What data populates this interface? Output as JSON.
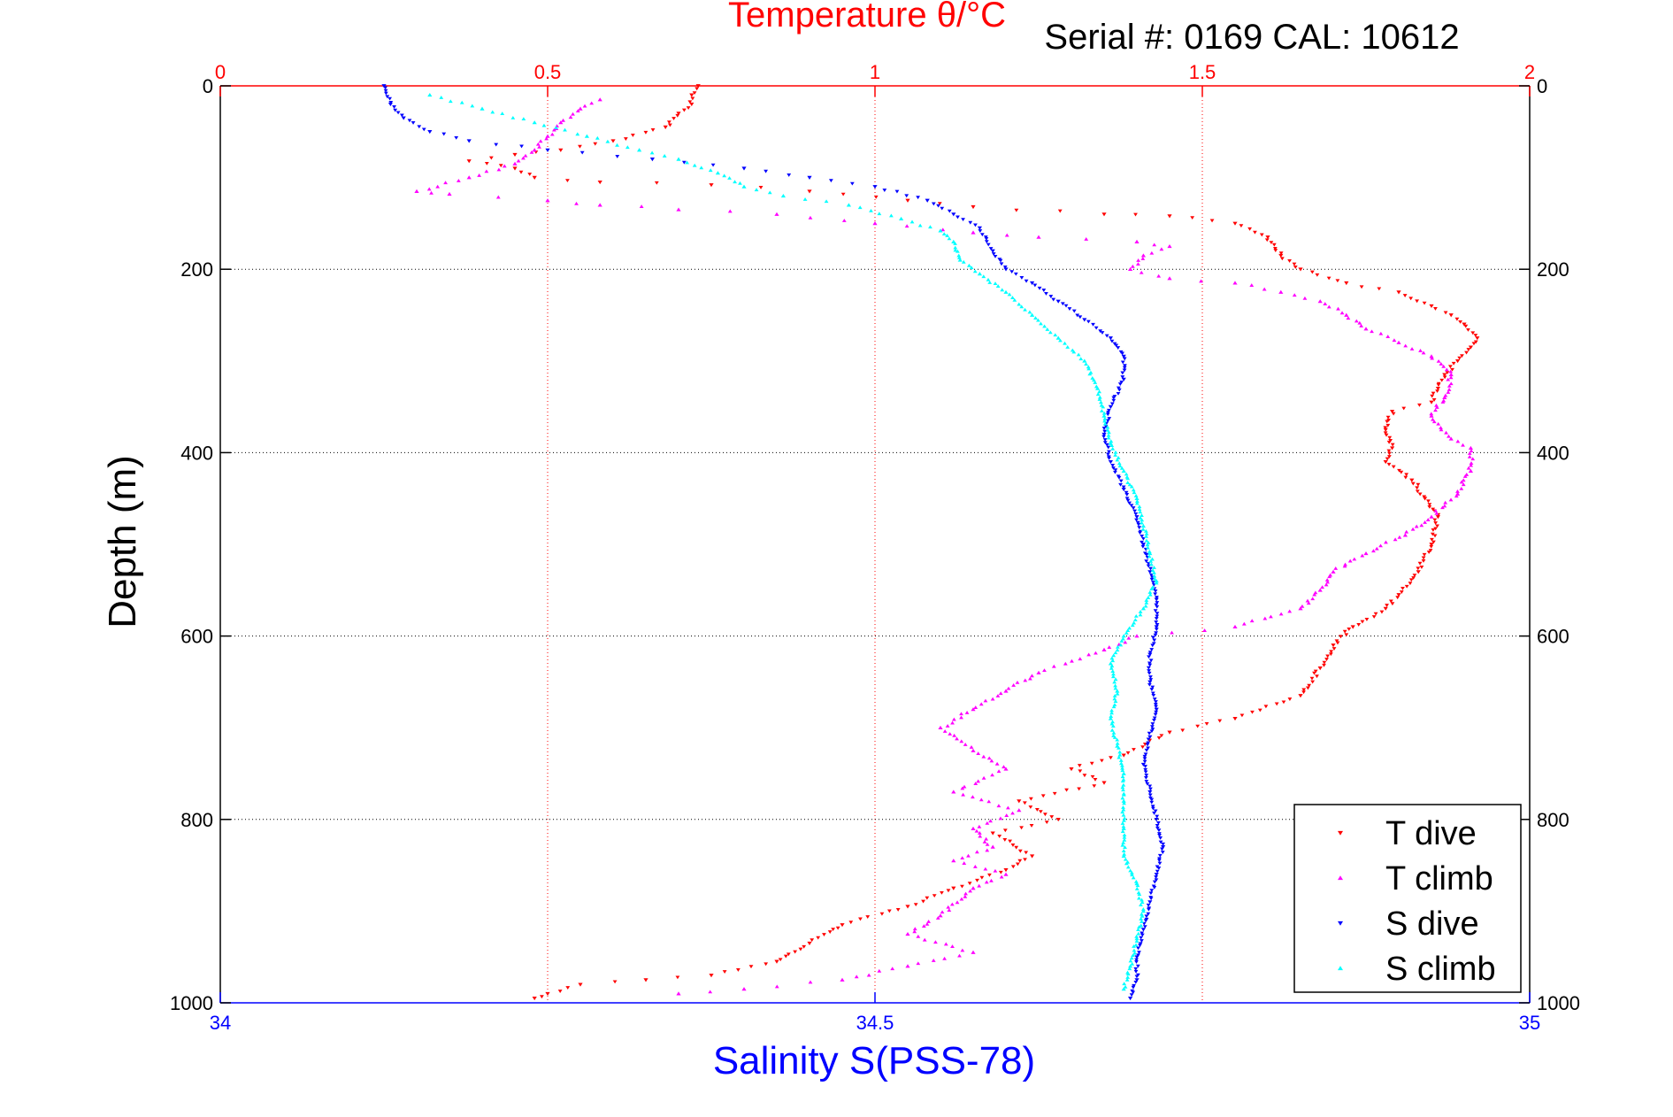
{
  "chart_data": {
    "type": "scatter",
    "title": "Temperature θ/°C",
    "subtitle": "Serial #: 0169 CAL: 10612",
    "xlabel_top": "Temperature θ/°C",
    "xlabel_bottom": "Salinity S(PSS-78)",
    "ylabel": "Depth (m)",
    "grid": true,
    "legend_position": "bottom-right",
    "ylim": [
      1000,
      0
    ],
    "y_ticks": [
      0,
      200,
      400,
      600,
      800,
      1000
    ],
    "y_tick_labels": [
      "0",
      "200",
      "400",
      "600",
      "800",
      "1000"
    ],
    "temperature_axis": {
      "range": [
        0,
        2
      ],
      "ticks": [
        0,
        0.5,
        1,
        1.5,
        2
      ],
      "tick_labels": [
        "0",
        "0.5",
        "1",
        "1.5",
        "2"
      ],
      "color": "#ff0000"
    },
    "salinity_axis": {
      "range": [
        34,
        35
      ],
      "ticks": [
        34,
        34.5,
        35
      ],
      "tick_labels": [
        "34",
        "34.5",
        "35"
      ],
      "color": "#0000ff"
    },
    "series": [
      {
        "name": "T dive",
        "axis": "temperature",
        "color": "#ff0000",
        "marker": "down-triangle",
        "points": [
          [
            0.73,
            0
          ],
          [
            0.72,
            10
          ],
          [
            0.72,
            20
          ],
          [
            0.7,
            30
          ],
          [
            0.68,
            45
          ],
          [
            0.6,
            60
          ],
          [
            0.52,
            70
          ],
          [
            0.45,
            75
          ],
          [
            0.38,
            82
          ],
          [
            0.45,
            90
          ],
          [
            0.48,
            100
          ],
          [
            0.58,
            105
          ],
          [
            0.75,
            108
          ],
          [
            0.9,
            115
          ],
          [
            1.05,
            125
          ],
          [
            1.15,
            132
          ],
          [
            1.35,
            140
          ],
          [
            1.45,
            142
          ],
          [
            1.55,
            150
          ],
          [
            1.6,
            165
          ],
          [
            1.62,
            185
          ],
          [
            1.65,
            200
          ],
          [
            1.72,
            215
          ],
          [
            1.8,
            225
          ],
          [
            1.85,
            240
          ],
          [
            1.88,
            250
          ],
          [
            1.9,
            260
          ],
          [
            1.92,
            275
          ],
          [
            1.91,
            285
          ],
          [
            1.89,
            300
          ],
          [
            1.87,
            315
          ],
          [
            1.86,
            330
          ],
          [
            1.85,
            345
          ],
          [
            1.79,
            355
          ],
          [
            1.78,
            375
          ],
          [
            1.79,
            395
          ],
          [
            1.78,
            410
          ],
          [
            1.82,
            430
          ],
          [
            1.84,
            450
          ],
          [
            1.86,
            470
          ],
          [
            1.85,
            500
          ],
          [
            1.83,
            530
          ],
          [
            1.8,
            555
          ],
          [
            1.78,
            570
          ],
          [
            1.73,
            590
          ],
          [
            1.7,
            610
          ],
          [
            1.68,
            635
          ],
          [
            1.65,
            665
          ],
          [
            1.55,
            690
          ],
          [
            1.45,
            705
          ],
          [
            1.38,
            730
          ],
          [
            1.3,
            745
          ],
          [
            1.35,
            760
          ],
          [
            1.22,
            780
          ],
          [
            1.28,
            800
          ],
          [
            1.18,
            815
          ],
          [
            1.24,
            840
          ],
          [
            1.2,
            855
          ],
          [
            1.12,
            875
          ],
          [
            1.05,
            895
          ],
          [
            0.95,
            915
          ],
          [
            0.9,
            935
          ],
          [
            0.85,
            955
          ],
          [
            0.75,
            970
          ],
          [
            0.65,
            975
          ],
          [
            0.55,
            980
          ],
          [
            0.5,
            990
          ],
          [
            0.48,
            995
          ]
        ]
      },
      {
        "name": "T climb",
        "axis": "temperature",
        "color": "#ff00ff",
        "marker": "up-triangle",
        "points": [
          [
            0.58,
            15
          ],
          [
            0.55,
            25
          ],
          [
            0.52,
            40
          ],
          [
            0.5,
            55
          ],
          [
            0.48,
            70
          ],
          [
            0.45,
            85
          ],
          [
            0.38,
            100
          ],
          [
            0.3,
            115
          ],
          [
            0.35,
            118
          ],
          [
            0.5,
            125
          ],
          [
            0.58,
            130
          ],
          [
            0.7,
            135
          ],
          [
            0.85,
            140
          ],
          [
            1.0,
            150
          ],
          [
            1.15,
            160
          ],
          [
            1.25,
            165
          ],
          [
            1.4,
            170
          ],
          [
            1.45,
            175
          ],
          [
            1.41,
            185
          ],
          [
            1.39,
            200
          ],
          [
            1.45,
            210
          ],
          [
            1.55,
            215
          ],
          [
            1.62,
            225
          ],
          [
            1.68,
            235
          ],
          [
            1.72,
            250
          ],
          [
            1.75,
            265
          ],
          [
            1.8,
            280
          ],
          [
            1.85,
            295
          ],
          [
            1.88,
            315
          ],
          [
            1.87,
            340
          ],
          [
            1.85,
            360
          ],
          [
            1.88,
            385
          ],
          [
            1.91,
            395
          ],
          [
            1.91,
            420
          ],
          [
            1.89,
            445
          ],
          [
            1.85,
            470
          ],
          [
            1.81,
            490
          ],
          [
            1.75,
            510
          ],
          [
            1.7,
            530
          ],
          [
            1.68,
            550
          ],
          [
            1.65,
            570
          ],
          [
            1.55,
            590
          ],
          [
            1.4,
            600
          ],
          [
            1.35,
            615
          ],
          [
            1.25,
            640
          ],
          [
            1.2,
            660
          ],
          [
            1.15,
            680
          ],
          [
            1.1,
            700
          ],
          [
            1.15,
            725
          ],
          [
            1.2,
            745
          ],
          [
            1.12,
            770
          ],
          [
            1.22,
            790
          ],
          [
            1.15,
            810
          ],
          [
            1.18,
            830
          ],
          [
            1.12,
            845
          ],
          [
            1.2,
            860
          ],
          [
            1.15,
            875
          ],
          [
            1.1,
            905
          ],
          [
            1.05,
            925
          ],
          [
            1.15,
            945
          ],
          [
            1.05,
            960
          ],
          [
            0.95,
            975
          ],
          [
            0.8,
            985
          ],
          [
            0.7,
            990
          ]
        ]
      },
      {
        "name": "S dive",
        "axis": "salinity",
        "color": "#0000ff",
        "marker": "down-triangle",
        "points": [
          [
            34.125,
            0
          ],
          [
            34.13,
            20
          ],
          [
            34.14,
            35
          ],
          [
            34.16,
            50
          ],
          [
            34.19,
            60
          ],
          [
            34.25,
            70
          ],
          [
            34.33,
            80
          ],
          [
            34.4,
            90
          ],
          [
            34.45,
            100
          ],
          [
            34.5,
            110
          ],
          [
            34.54,
            125
          ],
          [
            34.56,
            140
          ],
          [
            34.58,
            155
          ],
          [
            34.59,
            180
          ],
          [
            34.6,
            200
          ],
          [
            34.62,
            215
          ],
          [
            34.64,
            235
          ],
          [
            34.66,
            255
          ],
          [
            34.68,
            275
          ],
          [
            34.69,
            295
          ],
          [
            34.69,
            320
          ],
          [
            34.68,
            350
          ],
          [
            34.675,
            380
          ],
          [
            34.68,
            410
          ],
          [
            34.69,
            440
          ],
          [
            34.7,
            470
          ],
          [
            34.705,
            500
          ],
          [
            34.71,
            530
          ],
          [
            34.715,
            560
          ],
          [
            34.715,
            590
          ],
          [
            34.71,
            620
          ],
          [
            34.71,
            650
          ],
          [
            34.715,
            680
          ],
          [
            34.71,
            710
          ],
          [
            34.705,
            740
          ],
          [
            34.71,
            770
          ],
          [
            34.715,
            800
          ],
          [
            34.72,
            830
          ],
          [
            34.715,
            860
          ],
          [
            34.71,
            890
          ],
          [
            34.705,
            920
          ],
          [
            34.7,
            950
          ],
          [
            34.7,
            975
          ],
          [
            34.695,
            995
          ]
        ]
      },
      {
        "name": "S climb",
        "axis": "salinity",
        "color": "#00ffff",
        "marker": "up-triangle",
        "points": [
          [
            34.16,
            10
          ],
          [
            34.2,
            25
          ],
          [
            34.24,
            40
          ],
          [
            34.28,
            55
          ],
          [
            34.32,
            70
          ],
          [
            34.35,
            80
          ],
          [
            34.38,
            95
          ],
          [
            34.4,
            110
          ],
          [
            34.43,
            120
          ],
          [
            34.48,
            130
          ],
          [
            34.52,
            145
          ],
          [
            34.55,
            158
          ],
          [
            34.56,
            170
          ],
          [
            34.565,
            190
          ],
          [
            34.58,
            205
          ],
          [
            34.6,
            225
          ],
          [
            34.62,
            250
          ],
          [
            34.64,
            275
          ],
          [
            34.66,
            300
          ],
          [
            34.67,
            330
          ],
          [
            34.675,
            360
          ],
          [
            34.68,
            390
          ],
          [
            34.69,
            420
          ],
          [
            34.7,
            450
          ],
          [
            34.705,
            480
          ],
          [
            34.71,
            510
          ],
          [
            34.715,
            540
          ],
          [
            34.705,
            570
          ],
          [
            34.69,
            600
          ],
          [
            34.68,
            630
          ],
          [
            34.685,
            660
          ],
          [
            34.68,
            690
          ],
          [
            34.685,
            720
          ],
          [
            34.69,
            750
          ],
          [
            34.69,
            780
          ],
          [
            34.69,
            810
          ],
          [
            34.69,
            840
          ],
          [
            34.7,
            870
          ],
          [
            34.705,
            900
          ],
          [
            34.7,
            930
          ],
          [
            34.695,
            960
          ],
          [
            34.69,
            985
          ]
        ]
      }
    ],
    "legend": [
      {
        "label": "T dive",
        "color": "#ff0000",
        "marker": "down-triangle"
      },
      {
        "label": "T climb",
        "color": "#ff00ff",
        "marker": "up-triangle"
      },
      {
        "label": "S dive",
        "color": "#0000ff",
        "marker": "down-triangle"
      },
      {
        "label": "S climb",
        "color": "#00ffff",
        "marker": "up-triangle"
      }
    ]
  }
}
